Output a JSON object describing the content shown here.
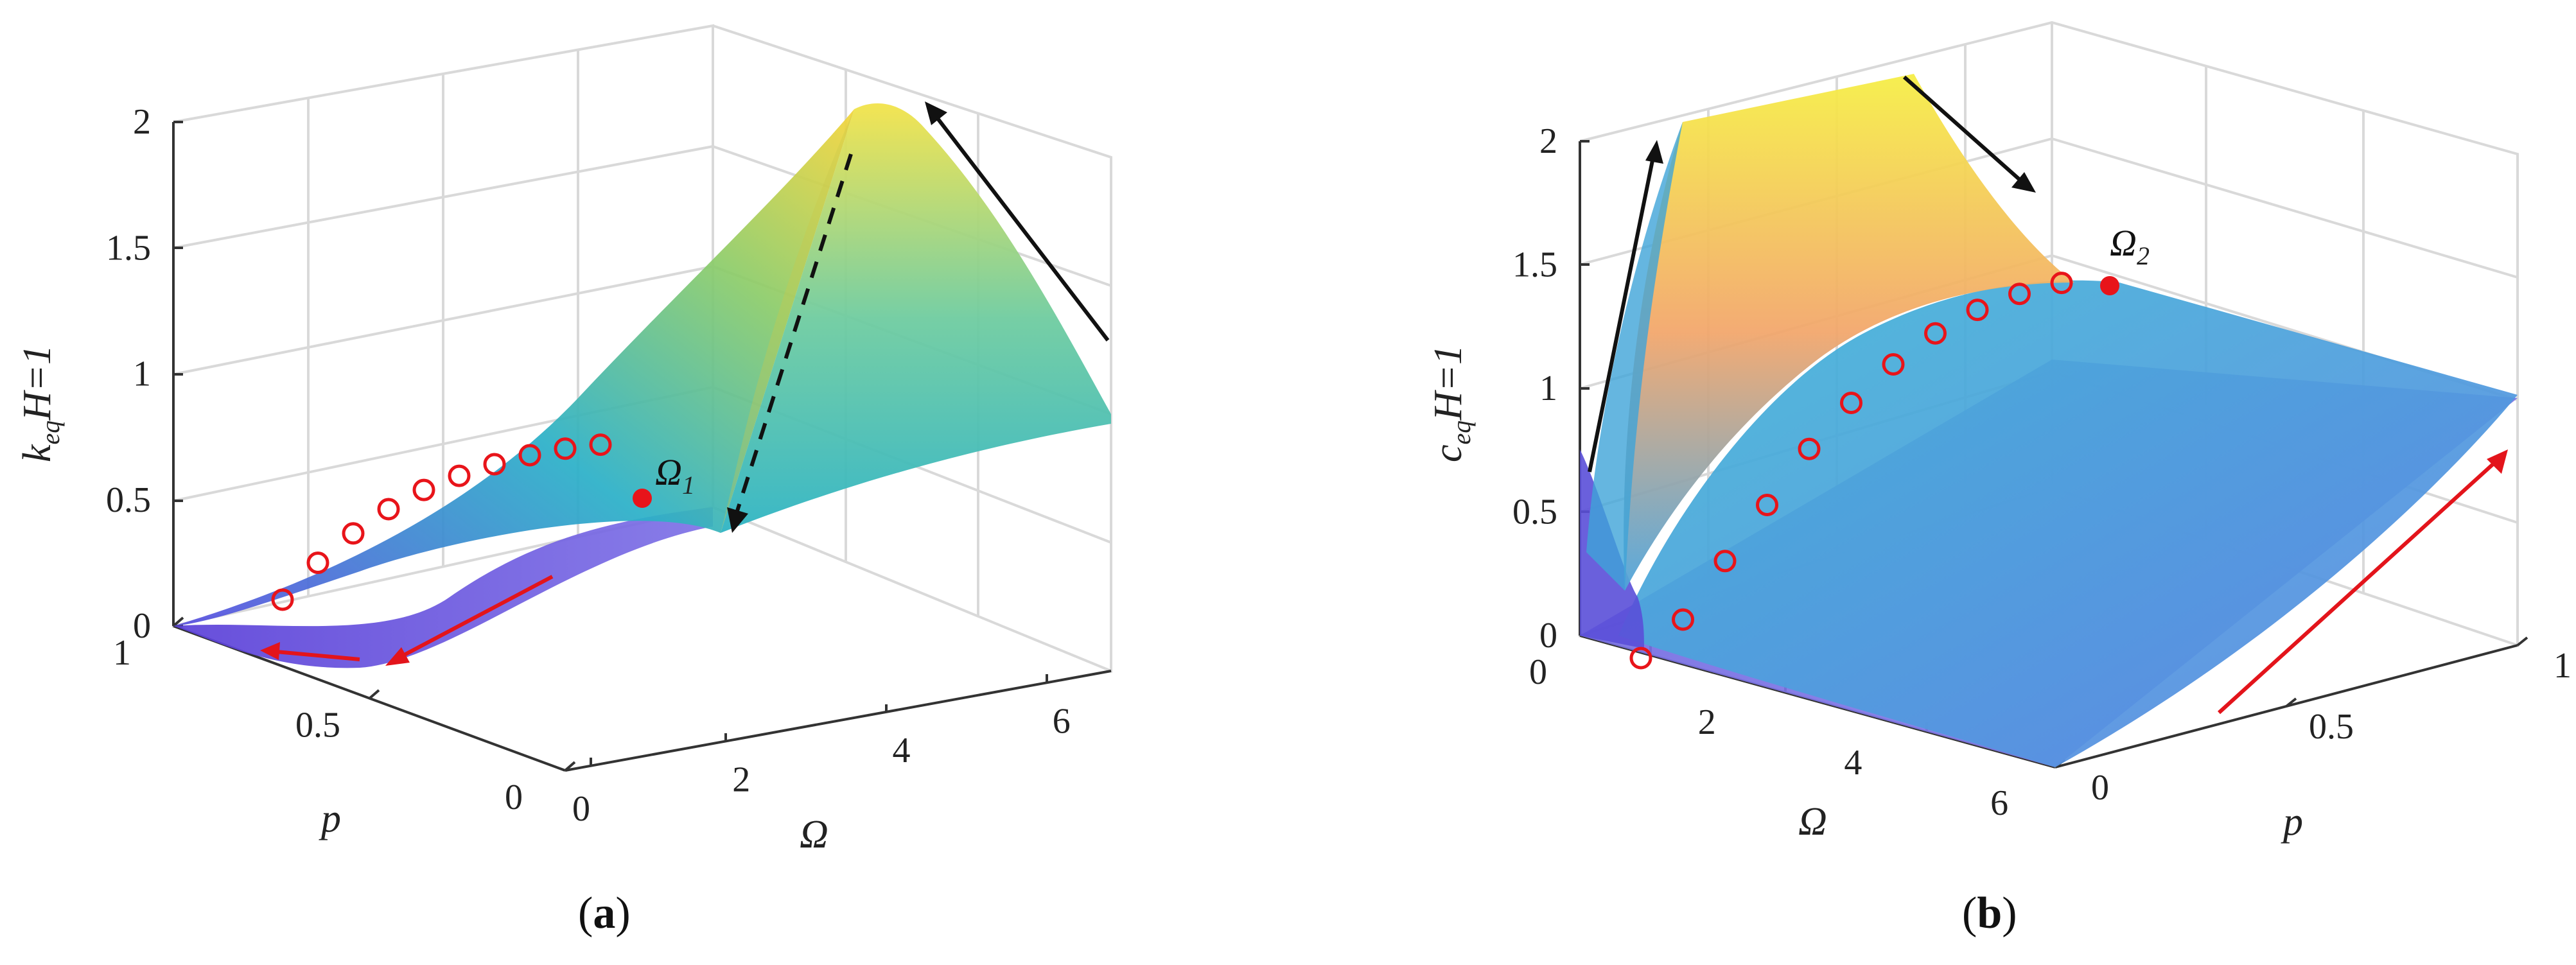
{
  "chart_data": [
    {
      "type": "surface",
      "panel": "a",
      "caption_letter": "a",
      "zlabel": {
        "main": "k",
        "sub": "eq",
        "suffix": "H=1"
      },
      "ylabel": "Ω",
      "xlabel": "p",
      "z_ticks": [
        "0",
        "0.5",
        "1",
        "1.5",
        "2"
      ],
      "omega_ticks": [
        "0",
        "2",
        "4",
        "6"
      ],
      "p_ticks": [
        "0",
        "0.5",
        "1"
      ],
      "zlim": [
        0,
        2
      ],
      "omega_range": [
        0,
        6.5
      ],
      "p_range": [
        0,
        1
      ],
      "grid": true,
      "peak_point": {
        "label": "Ω",
        "label_sub": "1",
        "omega": 3.5,
        "p": 1,
        "z": 0.52
      },
      "ridge_markers": [
        {
          "omega": 0.3,
          "z": 0.05
        },
        {
          "omega": 0.6,
          "z": 0.18
        },
        {
          "omega": 0.9,
          "z": 0.28
        },
        {
          "omega": 1.2,
          "z": 0.36
        },
        {
          "omega": 1.5,
          "z": 0.42
        },
        {
          "omega": 1.8,
          "z": 0.46
        },
        {
          "omega": 2.1,
          "z": 0.49
        },
        {
          "omega": 2.4,
          "z": 0.51
        },
        {
          "omega": 2.7,
          "z": 0.52
        },
        {
          "omega": 3.0,
          "z": 0.52
        }
      ],
      "surface_peak": {
        "omega": 6.5,
        "p": 0,
        "z": 2.0
      }
    },
    {
      "type": "surface",
      "panel": "b",
      "caption_letter": "b",
      "zlabel": {
        "main": "c",
        "sub": "eq",
        "suffix": "H=1"
      },
      "xlabel": "Ω",
      "ylabel": "p",
      "z_ticks": [
        "0",
        "0.5",
        "1",
        "1.5",
        "2"
      ],
      "omega_ticks": [
        "0",
        "2",
        "4",
        "6"
      ],
      "p_ticks": [
        "0",
        "0.5",
        "1"
      ],
      "zlim": [
        0,
        2
      ],
      "omega_range": [
        0,
        6.5
      ],
      "p_range": [
        0,
        1
      ],
      "grid": true,
      "peak_point": {
        "label": "Ω",
        "label_sub": "2",
        "omega": 6.5,
        "p": 1,
        "z": 1.48
      },
      "ridge_markers": [
        {
          "omega": 0.5,
          "z": 0.0
        },
        {
          "omega": 1.0,
          "z": 0.15
        },
        {
          "omega": 1.5,
          "z": 0.38
        },
        {
          "omega": 2.0,
          "z": 0.6
        },
        {
          "omega": 2.5,
          "z": 0.82
        },
        {
          "omega": 3.0,
          "z": 1.0
        },
        {
          "omega": 3.5,
          "z": 1.15
        },
        {
          "omega": 4.0,
          "z": 1.27
        },
        {
          "omega": 4.5,
          "z": 1.36
        },
        {
          "omega": 5.0,
          "z": 1.42
        },
        {
          "omega": 5.5,
          "z": 1.46
        }
      ],
      "surface_peak": {
        "omega": 1.2,
        "p": 0,
        "z": 2.1
      }
    }
  ],
  "palette": {
    "low": "#3e26a8",
    "mid": "#2cb5c0",
    "high": "#f9fb0e",
    "marker": "#e8141a",
    "arrow_red": "#e3141b",
    "arrow_black": "#111111"
  }
}
